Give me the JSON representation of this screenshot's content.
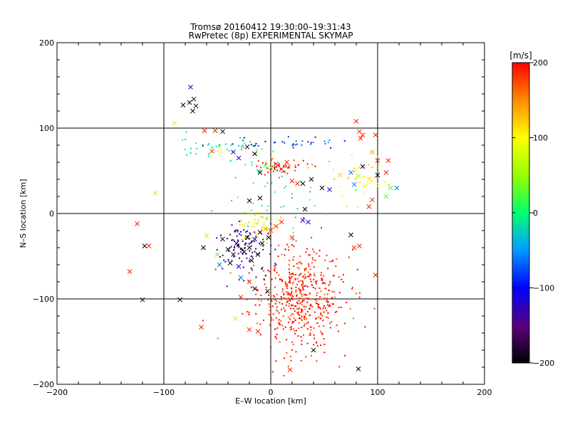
{
  "chart_data": {
    "type": "scatter",
    "title": "Tromsø 20160412 19:30:00–19:31:43",
    "subtitle": "RwPretec (8p) EXPERIMENTAL SKYMAP",
    "xlabel": "E–W location [km]",
    "ylabel": "N–S location [km]",
    "xlim": [
      -200,
      200
    ],
    "ylim": [
      -200,
      200
    ],
    "xticks": [
      -200,
      -100,
      0,
      100,
      200
    ],
    "yticks": [
      -200,
      -100,
      0,
      100,
      200
    ],
    "xtick_labels": [
      "−200",
      "−100",
      "0",
      "100",
      "200"
    ],
    "ytick_labels": [
      "−200",
      "−100",
      "0",
      "100",
      "200"
    ],
    "grid": true,
    "colorbar": {
      "label": "[m/s]",
      "range": [
        -200,
        200
      ],
      "ticks": [
        200,
        100,
        0,
        -100,
        -200
      ],
      "tick_labels": [
        "200",
        "100",
        "0",
        "−100",
        "−200"
      ],
      "colors": [
        "#000000",
        "#4b0082",
        "#0000ff",
        "#00bfff",
        "#00ff80",
        "#80ff00",
        "#ffff00",
        "#ffa500",
        "#ff0000"
      ]
    },
    "points_x": [
      {
        "x": -82,
        "y": 127,
        "v": -200
      },
      {
        "x": -76,
        "y": 130,
        "v": -200
      },
      {
        "x": -72,
        "y": 134,
        "v": -200
      },
      {
        "x": -70,
        "y": 126,
        "v": -200
      },
      {
        "x": -73,
        "y": 120,
        "v": -200
      },
      {
        "x": -75,
        "y": 148,
        "v": -120
      },
      {
        "x": -90,
        "y": 106,
        "v": 110
      },
      {
        "x": -62,
        "y": 97,
        "v": 190
      },
      {
        "x": -52,
        "y": 97,
        "v": 190
      },
      {
        "x": -45,
        "y": 96,
        "v": -200
      },
      {
        "x": -55,
        "y": 73,
        "v": 180
      },
      {
        "x": -48,
        "y": 72,
        "v": 100
      },
      {
        "x": -35,
        "y": 72,
        "v": -120
      },
      {
        "x": -30,
        "y": 65,
        "v": -120
      },
      {
        "x": -22,
        "y": 78,
        "v": -180
      },
      {
        "x": -15,
        "y": 70,
        "v": -200
      },
      {
        "x": -10,
        "y": 48,
        "v": -200
      },
      {
        "x": -5,
        "y": 56,
        "v": 20
      },
      {
        "x": 0,
        "y": 54,
        "v": 40
      },
      {
        "x": 5,
        "y": 58,
        "v": 190
      },
      {
        "x": 10,
        "y": 52,
        "v": 190
      },
      {
        "x": 15,
        "y": 60,
        "v": 190
      },
      {
        "x": 20,
        "y": 38,
        "v": 190
      },
      {
        "x": 25,
        "y": 35,
        "v": 190
      },
      {
        "x": 30,
        "y": 35,
        "v": -200
      },
      {
        "x": 38,
        "y": 40,
        "v": -200
      },
      {
        "x": 48,
        "y": 30,
        "v": -200
      },
      {
        "x": 55,
        "y": 28,
        "v": -120
      },
      {
        "x": 65,
        "y": 45,
        "v": 120
      },
      {
        "x": 75,
        "y": 48,
        "v": -60
      },
      {
        "x": 78,
        "y": 34,
        "v": -60
      },
      {
        "x": 82,
        "y": 44,
        "v": 60
      },
      {
        "x": 88,
        "y": 32,
        "v": 90
      },
      {
        "x": 92,
        "y": 40,
        "v": 110
      },
      {
        "x": 86,
        "y": 55,
        "v": -200
      },
      {
        "x": 80,
        "y": 108,
        "v": 190
      },
      {
        "x": 83,
        "y": 96,
        "v": 190
      },
      {
        "x": 86,
        "y": 92,
        "v": 190
      },
      {
        "x": 84,
        "y": 88,
        "v": 190
      },
      {
        "x": 98,
        "y": 92,
        "v": 190
      },
      {
        "x": 95,
        "y": 72,
        "v": 140
      },
      {
        "x": 100,
        "y": 62,
        "v": 190
      },
      {
        "x": 110,
        "y": 62,
        "v": 190
      },
      {
        "x": 108,
        "y": 48,
        "v": 190
      },
      {
        "x": 100,
        "y": 45,
        "v": -200
      },
      {
        "x": 112,
        "y": 30,
        "v": 30
      },
      {
        "x": 118,
        "y": 30,
        "v": -60
      },
      {
        "x": 108,
        "y": 20,
        "v": 30
      },
      {
        "x": 95,
        "y": 16,
        "v": 190
      },
      {
        "x": 92,
        "y": 8,
        "v": 190
      },
      {
        "x": -108,
        "y": 24,
        "v": 60
      },
      {
        "x": -125,
        "y": -12,
        "v": 190
      },
      {
        "x": -118,
        "y": -38,
        "v": -200
      },
      {
        "x": -114,
        "y": -38,
        "v": 190
      },
      {
        "x": -132,
        "y": -68,
        "v": 190
      },
      {
        "x": -120,
        "y": -101,
        "v": -200
      },
      {
        "x": -63,
        "y": -40,
        "v": -200
      },
      {
        "x": -50,
        "y": -48,
        "v": 30
      },
      {
        "x": -45,
        "y": -30,
        "v": -180
      },
      {
        "x": -40,
        "y": -42,
        "v": -200
      },
      {
        "x": -38,
        "y": -58,
        "v": -200
      },
      {
        "x": -35,
        "y": -48,
        "v": -200
      },
      {
        "x": -32,
        "y": -35,
        "v": -200
      },
      {
        "x": -30,
        "y": -62,
        "v": -120
      },
      {
        "x": -28,
        "y": -75,
        "v": -60
      },
      {
        "x": -25,
        "y": -45,
        "v": -200
      },
      {
        "x": -22,
        "y": -28,
        "v": -200
      },
      {
        "x": -20,
        "y": -40,
        "v": -200
      },
      {
        "x": -18,
        "y": -55,
        "v": -200
      },
      {
        "x": -15,
        "y": -30,
        "v": -100
      },
      {
        "x": -12,
        "y": -48,
        "v": -200
      },
      {
        "x": -10,
        "y": -22,
        "v": -200
      },
      {
        "x": -8,
        "y": -35,
        "v": -200
      },
      {
        "x": -5,
        "y": -18,
        "v": 140
      },
      {
        "x": -2,
        "y": -28,
        "v": -200
      },
      {
        "x": 0,
        "y": -20,
        "v": 190
      },
      {
        "x": 5,
        "y": -15,
        "v": 190
      },
      {
        "x": 10,
        "y": -10,
        "v": 190
      },
      {
        "x": 20,
        "y": -28,
        "v": 190
      },
      {
        "x": 30,
        "y": -8,
        "v": -120
      },
      {
        "x": 35,
        "y": -10,
        "v": -120
      },
      {
        "x": 32,
        "y": 5,
        "v": -200
      },
      {
        "x": -10,
        "y": 18,
        "v": -200
      },
      {
        "x": -20,
        "y": 15,
        "v": -200
      },
      {
        "x": -15,
        "y": -88,
        "v": -200
      },
      {
        "x": -20,
        "y": -80,
        "v": 190
      },
      {
        "x": -28,
        "y": -98,
        "v": 190
      },
      {
        "x": -33,
        "y": -123,
        "v": 80
      },
      {
        "x": -20,
        "y": -136,
        "v": 190
      },
      {
        "x": -12,
        "y": -138,
        "v": 190
      },
      {
        "x": -65,
        "y": -133,
        "v": 190
      },
      {
        "x": -85,
        "y": -101,
        "v": -200
      },
      {
        "x": -3,
        "y": -91,
        "v": -200
      },
      {
        "x": 40,
        "y": -160,
        "v": -200
      },
      {
        "x": 18,
        "y": -183,
        "v": 190
      },
      {
        "x": 82,
        "y": -182,
        "v": -200
      },
      {
        "x": 98,
        "y": -72,
        "v": 190
      },
      {
        "x": 78,
        "y": -40,
        "v": 190
      },
      {
        "x": 83,
        "y": -38,
        "v": 190
      },
      {
        "x": 75,
        "y": -25,
        "v": -200
      },
      {
        "x": -60,
        "y": -26,
        "v": 60
      },
      {
        "x": -48,
        "y": -60,
        "v": -60
      }
    ],
    "points_dot_count": 900,
    "dot_clusters": [
      {
        "cx": 25,
        "cy": -100,
        "sx": 22,
        "sy": 30,
        "v": 190,
        "n": 520
      },
      {
        "cx": -25,
        "cy": -38,
        "sx": 14,
        "sy": 14,
        "v": -150,
        "n": 110
      },
      {
        "cx": -12,
        "cy": -15,
        "sx": 10,
        "sy": 10,
        "v": 100,
        "n": 60
      },
      {
        "cx": 10,
        "cy": 55,
        "sx": 14,
        "sy": 4,
        "v": 190,
        "n": 50
      },
      {
        "cx": -45,
        "cy": 78,
        "sx": 22,
        "sy": 5,
        "v": 0,
        "n": 40
      },
      {
        "cx": 15,
        "cy": 82,
        "sx": 25,
        "sy": 3,
        "v": -80,
        "n": 35
      },
      {
        "cx": 5,
        "cy": 20,
        "sx": 30,
        "sy": 25,
        "v": 0,
        "n": 50
      },
      {
        "cx": 85,
        "cy": 40,
        "sx": 15,
        "sy": 15,
        "v": 110,
        "n": 35
      }
    ]
  }
}
